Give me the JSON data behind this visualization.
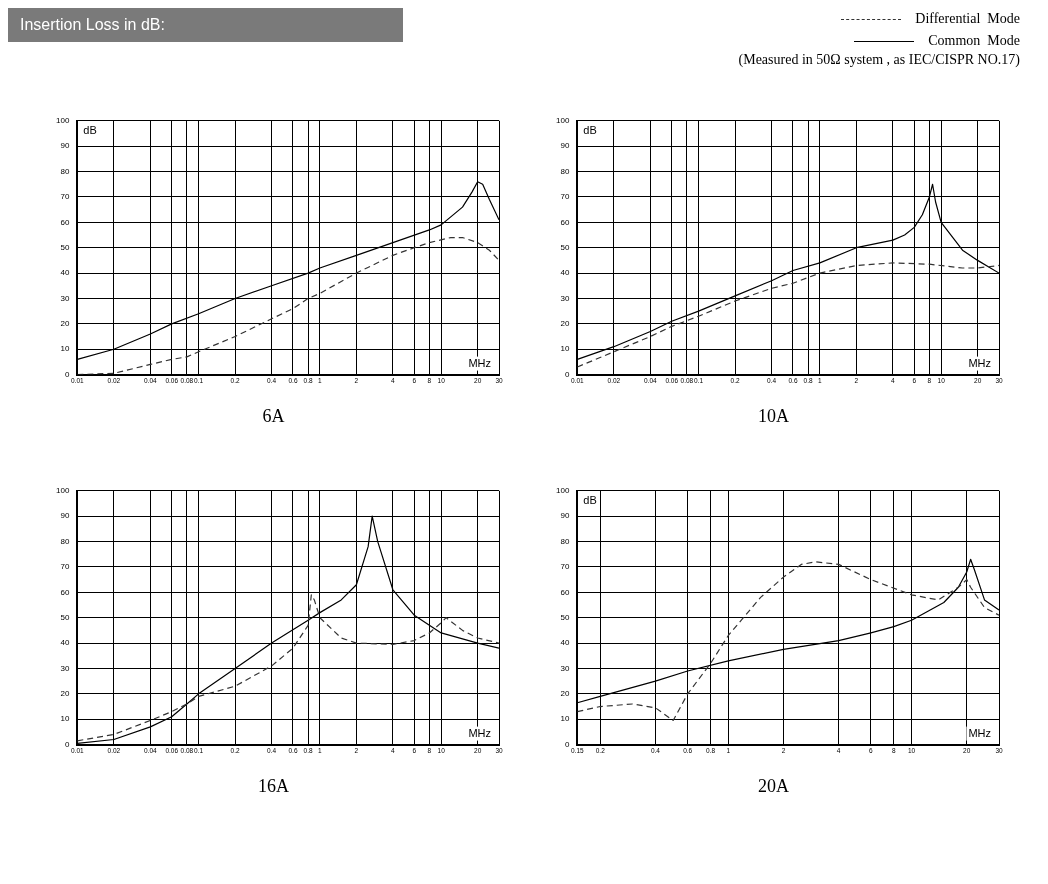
{
  "chart_data": [
    {
      "type": "other",
      "title": "Insertion Loss in dB:",
      "annotations": [
        "(Measured in 50Ω system , as IEC/CISPR NO.17)"
      ]
    },
    {
      "type": "line",
      "title": "6A",
      "xlabel": "MHz",
      "ylabel": "dB",
      "xlim": [
        0.01,
        30
      ],
      "ylim": [
        0,
        100
      ],
      "log": "x",
      "grid": true,
      "legend": "top right",
      "xticks": [
        0.01,
        0.02,
        0.04,
        0.06,
        0.08,
        0.1,
        0.2,
        0.4,
        0.6,
        0.8,
        1,
        2,
        4,
        6,
        8,
        10,
        20,
        30
      ],
      "yticks": [
        0,
        10,
        20,
        30,
        40,
        50,
        60,
        70,
        80,
        90,
        100
      ],
      "series": [
        {
          "name": "Differential  Mode",
          "color": "#333333",
          "line_style": "dashed",
          "x": [
            0.01,
            0.02,
            0.04,
            0.06,
            0.08,
            0.1,
            0.2,
            0.4,
            0.6,
            0.8,
            1,
            2,
            4,
            6,
            8,
            12,
            15,
            20,
            25,
            30
          ],
          "values": [
            0,
            0.5,
            4,
            6,
            7,
            9,
            15,
            22,
            26,
            30,
            32,
            40,
            47,
            50,
            52,
            54,
            54,
            52,
            49,
            45
          ]
        },
        {
          "name": "Common  Mode",
          "color": "#000000",
          "line_style": "solid",
          "x": [
            0.01,
            0.02,
            0.04,
            0.06,
            0.1,
            0.2,
            0.4,
            0.8,
            1,
            2,
            4,
            8,
            10,
            15,
            18,
            20,
            22,
            25,
            30
          ],
          "values": [
            6,
            10,
            16,
            20,
            24,
            30,
            35,
            40,
            42,
            47,
            52,
            57,
            59,
            66,
            72,
            76,
            75,
            69,
            61
          ]
        }
      ]
    },
    {
      "type": "line",
      "title": "10A",
      "xlabel": "MHz",
      "ylabel": "dB",
      "xlim": [
        0.01,
        30
      ],
      "ylim": [
        0,
        100
      ],
      "log": "x",
      "grid": true,
      "xticks": [
        0.01,
        0.02,
        0.04,
        0.06,
        0.08,
        0.1,
        0.2,
        0.4,
        0.6,
        0.8,
        1,
        2,
        4,
        6,
        8,
        10,
        20,
        30
      ],
      "yticks": [
        0,
        10,
        20,
        30,
        40,
        50,
        60,
        70,
        80,
        90,
        100
      ],
      "series": [
        {
          "color": "#333333",
          "line_style": "dashed",
          "x": [
            0.01,
            0.02,
            0.04,
            0.06,
            0.1,
            0.2,
            0.4,
            0.6,
            1,
            2,
            4,
            8,
            15,
            20,
            30
          ],
          "values": [
            3,
            9,
            15,
            19,
            23,
            29,
            34,
            36,
            40,
            43,
            44,
            43.5,
            42,
            42,
            43
          ]
        },
        {
          "color": "#000000",
          "line_style": "solid",
          "x": [
            0.01,
            0.02,
            0.04,
            0.06,
            0.1,
            0.2,
            0.4,
            0.6,
            1,
            2,
            4,
            5,
            6,
            7,
            8,
            8.5,
            9,
            10,
            15,
            20,
            30
          ],
          "values": [
            6,
            11,
            17,
            21,
            25,
            31,
            37,
            41,
            44,
            50,
            53,
            55,
            58,
            63,
            70,
            75,
            68,
            60,
            49,
            45,
            40
          ]
        }
      ]
    },
    {
      "type": "line",
      "title": "16A",
      "xlabel": "MHz",
      "xlim": [
        0.01,
        30
      ],
      "ylim": [
        0,
        100
      ],
      "log": "x",
      "grid": true,
      "xticks": [
        0.01,
        0.02,
        0.04,
        0.06,
        0.08,
        0.1,
        0.2,
        0.4,
        0.6,
        0.8,
        1,
        2,
        4,
        6,
        8,
        10,
        20,
        30
      ],
      "yticks": [
        0,
        10,
        20,
        30,
        40,
        50,
        60,
        70,
        80,
        90,
        100
      ],
      "series": [
        {
          "color": "#333333",
          "line_style": "dashed",
          "x": [
            0.01,
            0.02,
            0.04,
            0.06,
            0.08,
            0.1,
            0.2,
            0.4,
            0.6,
            0.8,
            0.85,
            0.9,
            1,
            1.5,
            2,
            4,
            6,
            8,
            10,
            11,
            15,
            20,
            30
          ],
          "values": [
            1.5,
            4,
            9.5,
            13,
            16,
            19,
            23,
            31,
            38,
            47,
            59,
            57,
            50,
            42,
            40,
            39.5,
            41,
            44,
            48,
            50,
            45,
            42,
            40
          ]
        },
        {
          "color": "#000000",
          "line_style": "solid",
          "x": [
            0.01,
            0.02,
            0.04,
            0.06,
            0.08,
            0.1,
            0.2,
            0.4,
            0.8,
            1,
            1.5,
            2,
            2.5,
            2.7,
            3,
            4,
            6,
            10,
            20,
            30
          ],
          "values": [
            0.5,
            2,
            7,
            11,
            16,
            20,
            30,
            40,
            49,
            52,
            57,
            63,
            78,
            90,
            80,
            61,
            51,
            44,
            40,
            38
          ]
        }
      ]
    },
    {
      "type": "line",
      "title": "20A",
      "xlabel": "MHz",
      "ylabel": "dB",
      "xlim": [
        0.15,
        30
      ],
      "ylim": [
        0,
        100
      ],
      "log": "x",
      "grid": true,
      "xticks": [
        0.15,
        0.2,
        0.4,
        0.6,
        0.8,
        1,
        2,
        4,
        6,
        8,
        10,
        20,
        30
      ],
      "yticks": [
        0,
        10,
        20,
        30,
        40,
        50,
        60,
        70,
        80,
        90,
        100
      ],
      "series": [
        {
          "color": "#333333",
          "line_style": "dashed",
          "x": [
            0.15,
            0.2,
            0.3,
            0.4,
            0.5,
            0.6,
            0.8,
            1,
            1.5,
            2,
            2.5,
            3,
            4,
            6,
            10,
            14,
            18,
            20,
            21,
            25,
            30
          ],
          "values": [
            13,
            15,
            16,
            14.5,
            9.5,
            20,
            32,
            43,
            58,
            66,
            71,
            72,
            71,
            65,
            59,
            57,
            62,
            65,
            62,
            54,
            51
          ]
        },
        {
          "color": "#000000",
          "line_style": "solid",
          "x": [
            0.15,
            0.2,
            0.4,
            0.6,
            1,
            2,
            4,
            6,
            8,
            10,
            15,
            18,
            20,
            21,
            22,
            25,
            30
          ],
          "values": [
            16.5,
            19,
            25,
            29,
            33,
            37.5,
            41,
            44,
            46.5,
            49,
            56,
            62,
            68,
            73,
            69,
            57,
            53
          ]
        }
      ]
    }
  ]
}
